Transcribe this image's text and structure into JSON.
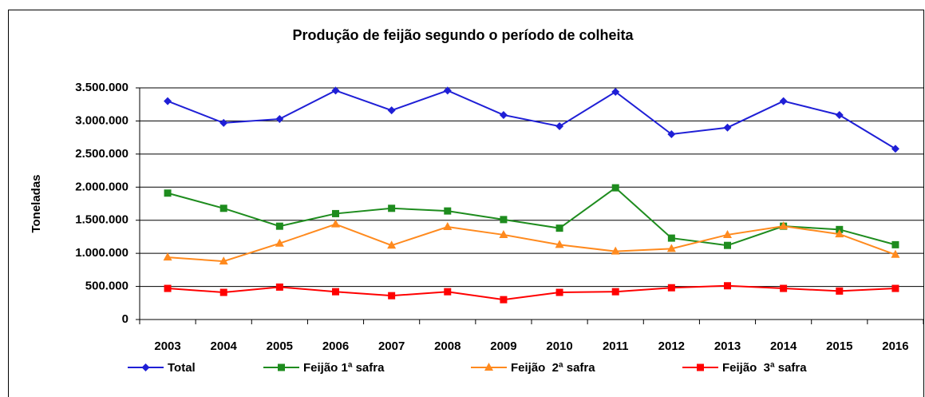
{
  "chart_data": {
    "type": "line",
    "title": "Produção de feijão segundo o período de colheita",
    "y_label": "Toneladas",
    "categories": [
      "2003",
      "2004",
      "2005",
      "2006",
      "2007",
      "2008",
      "2009",
      "2010",
      "2011",
      "2012",
      "2013",
      "2014",
      "2015",
      "2016"
    ],
    "series": [
      {
        "name": "Total",
        "color": "#1f1fd6",
        "marker": "diamond",
        "values": [
          3300000,
          2970000,
          3030000,
          3460000,
          3160000,
          3460000,
          3090000,
          2920000,
          3440000,
          2800000,
          2900000,
          3300000,
          3090000,
          2580000
        ]
      },
      {
        "name": "Feijão 1ª safra",
        "color": "#1e8c1e",
        "marker": "square",
        "values": [
          1910000,
          1680000,
          1410000,
          1600000,
          1680000,
          1640000,
          1510000,
          1380000,
          1990000,
          1230000,
          1120000,
          1410000,
          1360000,
          1130000
        ]
      },
      {
        "name": "Feijão  2ª safra",
        "color": "#ff8a1e",
        "marker": "triangle",
        "values": [
          940000,
          880000,
          1150000,
          1440000,
          1120000,
          1400000,
          1280000,
          1130000,
          1030000,
          1070000,
          1280000,
          1410000,
          1290000,
          980000
        ]
      },
      {
        "name": "Feijão  3ª safra",
        "color": "#ff0000",
        "marker": "square",
        "values": [
          470000,
          410000,
          490000,
          420000,
          360000,
          420000,
          300000,
          410000,
          420000,
          480000,
          510000,
          470000,
          430000,
          470000
        ]
      }
    ],
    "ylim": [
      0,
      3500000
    ],
    "yticks": [
      0,
      {
        "value": 500000,
        "label": "500.000"
      },
      {
        "value": 1000000,
        "label": "1.000.000"
      },
      {
        "value": 1500000,
        "label": "1.500.000"
      },
      {
        "value": 2000000,
        "label": "2.000.000"
      },
      {
        "value": 2500000,
        "label": "2.500.000"
      },
      {
        "value": 3000000,
        "label": "3.000.000"
      },
      {
        "value": 3500000,
        "label": "3.500.000"
      }
    ],
    "grid": true,
    "legend": "bottom"
  }
}
